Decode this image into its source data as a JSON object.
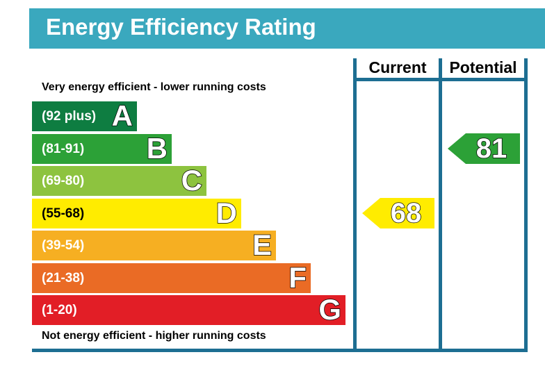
{
  "title": "Energy Efficiency Rating",
  "top_caption": "Very energy efficient - lower running costs",
  "bottom_caption": "Not energy efficient - higher running costs",
  "columns": {
    "current": "Current",
    "potential": "Potential"
  },
  "chart_data": {
    "type": "bar",
    "title": "Energy Efficiency Rating",
    "bands": [
      {
        "letter": "A",
        "range": "(92 plus)",
        "min": 92,
        "max": null,
        "color": "#0e7d41"
      },
      {
        "letter": "B",
        "range": "(81-91)",
        "min": 81,
        "max": 91,
        "color": "#2ca137"
      },
      {
        "letter": "C",
        "range": "(69-80)",
        "min": 69,
        "max": 80,
        "color": "#8dc33f"
      },
      {
        "letter": "D",
        "range": "(55-68)",
        "min": 55,
        "max": 68,
        "color": "#ffec00"
      },
      {
        "letter": "E",
        "range": "(39-54)",
        "min": 39,
        "max": 54,
        "color": "#f6af22"
      },
      {
        "letter": "F",
        "range": "(21-38)",
        "min": 21,
        "max": 38,
        "color": "#ea6b25"
      },
      {
        "letter": "G",
        "range": "(1-20)",
        "min": 1,
        "max": 20,
        "color": "#e21e26"
      }
    ],
    "current": {
      "value": 68,
      "band": "D",
      "color": "#ffec00"
    },
    "potential": {
      "value": 81,
      "band": "B",
      "color": "#2ca137"
    }
  }
}
